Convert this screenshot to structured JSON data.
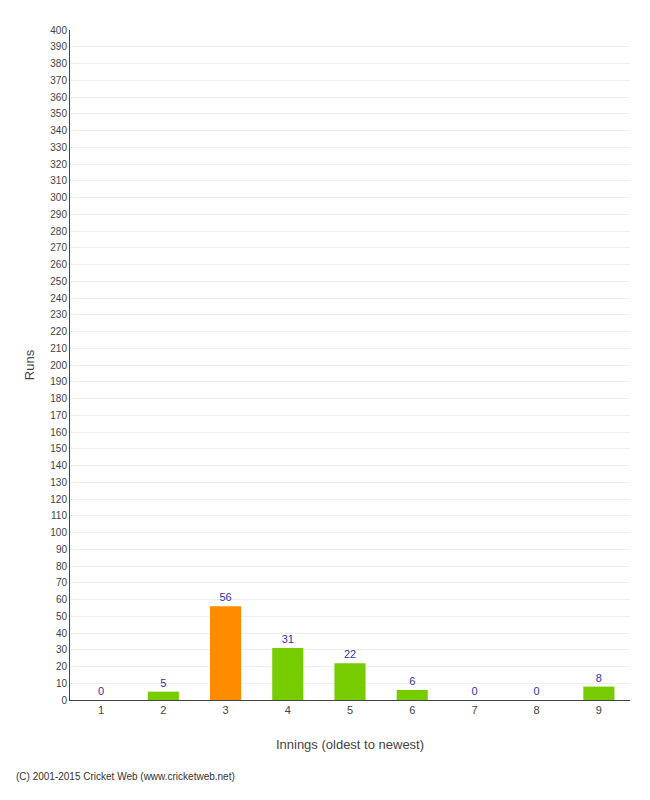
{
  "chart_data": {
    "type": "bar",
    "xlabel": "Innings (oldest to newest)",
    "ylabel": "Runs",
    "annotations": [
      "(C) 2001-2015 Cricket Web (www.cricketweb.net)"
    ],
    "categories": [
      "1",
      "2",
      "3",
      "4",
      "5",
      "6",
      "7",
      "8",
      "9"
    ],
    "values": [
      0,
      5,
      56,
      31,
      22,
      6,
      0,
      0,
      8
    ],
    "colors": [
      "#77cc00",
      "#77cc00",
      "#ff8c00",
      "#77cc00",
      "#77cc00",
      "#77cc00",
      "#77cc00",
      "#77cc00",
      "#77cc00"
    ],
    "ylim": [
      0,
      400
    ],
    "yticks": [
      0,
      10,
      20,
      30,
      40,
      50,
      60,
      70,
      80,
      90,
      100,
      110,
      120,
      130,
      140,
      150,
      160,
      170,
      180,
      190,
      200,
      210,
      220,
      230,
      240,
      250,
      260,
      270,
      280,
      290,
      300,
      310,
      320,
      330,
      340,
      350,
      360,
      370,
      380,
      390,
      400
    ],
    "grid": true,
    "data_labels": true
  }
}
